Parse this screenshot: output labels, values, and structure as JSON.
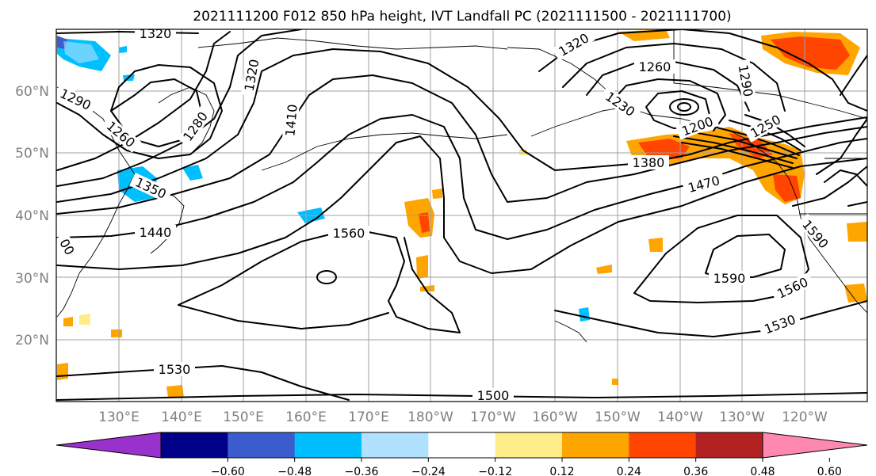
{
  "title": "2021111200 F012 850 hPa height, IVT Landfall PC (2021111500 - 2021111700)",
  "lat_labels": [
    "20°N",
    "30°N",
    "40°N",
    "50°N",
    "60°N"
  ],
  "lon_labels": [
    "130°E",
    "140°E",
    "150°E",
    "160°E",
    "170°E",
    "180°W",
    "170°W",
    "160°W",
    "150°W",
    "140°W",
    "130°W",
    "120°W"
  ],
  "contour_labels": [
    "1320",
    "1320",
    "1320",
    "1260",
    "1290",
    "1260",
    "1280",
    "1410",
    "1230",
    "1290",
    "1200",
    "1250",
    "1350",
    "1380",
    "1470",
    "1440",
    "1560",
    "1590",
    "1560",
    "1530",
    "1530",
    "1500",
    "1590",
    "00"
  ],
  "colorbar": {
    "tick_labels": [
      "−0.60",
      "−0.48",
      "−0.36",
      "−0.24",
      "−0.12",
      "0.12",
      "0.24",
      "0.36",
      "0.48",
      "0.60"
    ],
    "colors": [
      "#9932cc",
      "#000088",
      "#3a5ccc",
      "#00bfff",
      "#b0e2ff",
      "#ffffff",
      "#ffec8b",
      "#ffa500",
      "#ff4500",
      "#b22222",
      "#ff88b0"
    ]
  },
  "colors": {
    "land_line": "#000000",
    "grid": "#a0a0a0",
    "tick_text": "#808080"
  }
}
